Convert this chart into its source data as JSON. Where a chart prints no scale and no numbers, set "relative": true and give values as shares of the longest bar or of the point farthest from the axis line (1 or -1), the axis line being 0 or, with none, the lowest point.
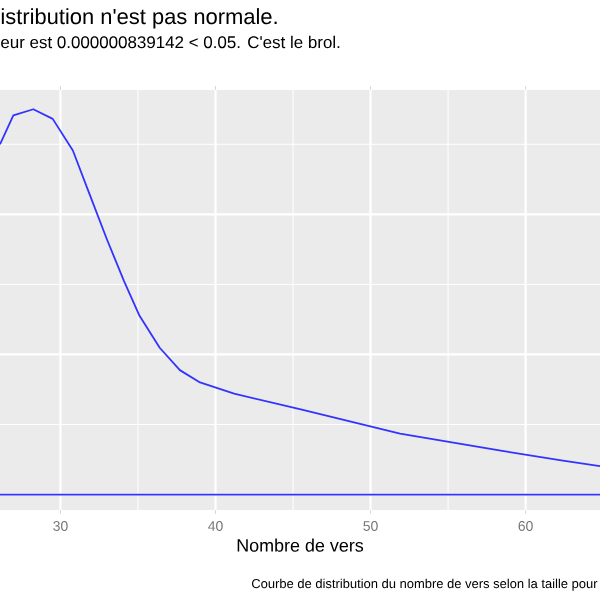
{
  "chart_data": {
    "type": "line",
    "relative": true,
    "title": "istribution n'est pas normale.",
    "subtitle": "eur est  0.000000839142  < 0.05. C'est le brol.",
    "xlabel": "Nombre de vers",
    "annotations": [
      "Courbe de distribution du nombre de vers selon la taille pour"
    ],
    "xlim": [
      26.1,
      64.8
    ],
    "xticks": [
      30,
      40,
      50,
      60
    ],
    "grid": true,
    "x": [
      26.1,
      26.96,
      28.25,
      29.5,
      30.8,
      31.9,
      33.0,
      34.1,
      35.1,
      36.4,
      37.7,
      39.0,
      41.2,
      45.5,
      51.9,
      58.4,
      62.3,
      64.8
    ],
    "series": [
      {
        "color": "#3333ff",
        "values": [
          0.909,
          0.984,
          1.0,
          0.975,
          0.893,
          0.777,
          0.662,
          0.554,
          0.464,
          0.381,
          0.323,
          0.291,
          0.262,
          0.221,
          0.158,
          0.114,
          0.089,
          0.074
        ]
      }
    ]
  }
}
